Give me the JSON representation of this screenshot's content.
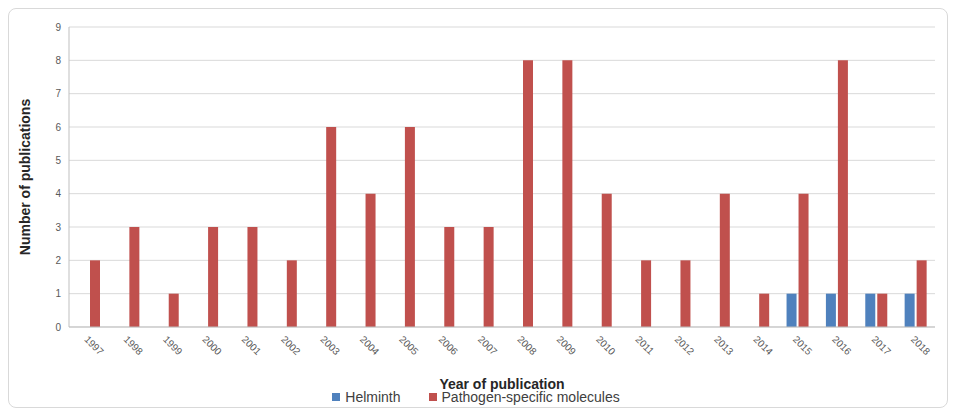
{
  "chart_data": {
    "type": "bar",
    "categories": [
      "1997",
      "1998",
      "1999",
      "2000",
      "2001",
      "2002",
      "2003",
      "2004",
      "2005",
      "2006",
      "2007",
      "2008",
      "2009",
      "2010",
      "2011",
      "2012",
      "2013",
      "2014",
      "2015",
      "2016",
      "2017",
      "2018"
    ],
    "series": [
      {
        "name": "Helminth",
        "color": "#4f81bd",
        "values": [
          0,
          0,
          0,
          0,
          0,
          0,
          0,
          0,
          0,
          0,
          0,
          0,
          0,
          0,
          0,
          0,
          0,
          0,
          1,
          1,
          1,
          1
        ]
      },
      {
        "name": "Pathogen-specific molecules",
        "color": "#c0504d",
        "values": [
          2,
          3,
          1,
          3,
          3,
          2,
          6,
          4,
          6,
          3,
          3,
          8,
          8,
          4,
          2,
          2,
          4,
          1,
          4,
          8,
          1,
          2
        ]
      }
    ],
    "x_label": "Year of publication",
    "y_label": "Number of publications",
    "ylim": [
      0,
      9
    ],
    "yticks": [
      0,
      1,
      2,
      3,
      4,
      5,
      6,
      7,
      8,
      9
    ],
    "grid": true,
    "legend": "bottom"
  }
}
